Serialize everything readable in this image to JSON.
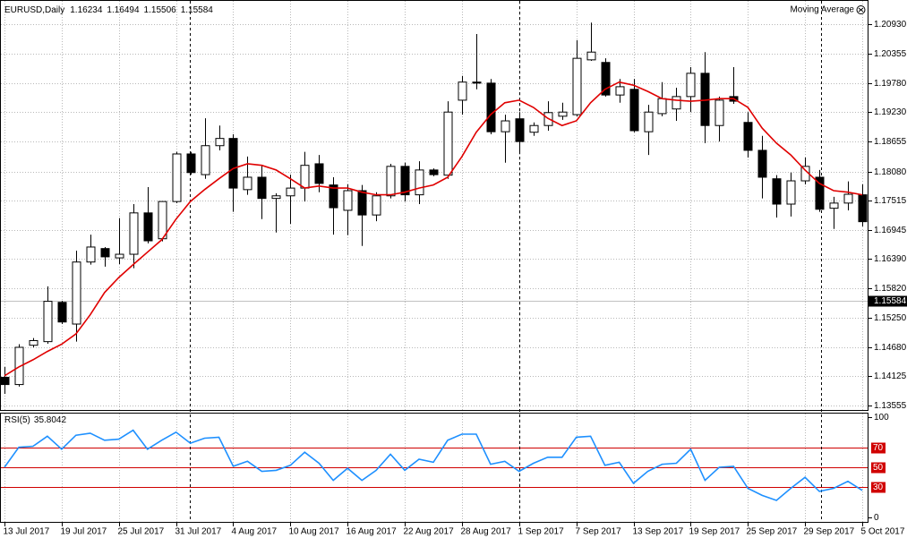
{
  "chart_data": [
    {
      "type": "candlestick",
      "symbol": "EURUSD,Daily",
      "header_values": [
        1.16234,
        1.16494,
        1.15506,
        1.15584
      ],
      "categories": [
        "13 Jul 2017",
        null,
        null,
        null,
        "19 Jul 2017",
        null,
        null,
        null,
        "25 Jul 2017",
        null,
        null,
        null,
        "31 Jul 2017",
        null,
        null,
        null,
        "4 Aug 2017",
        null,
        null,
        null,
        "10 Aug 2017",
        null,
        null,
        null,
        "16 Aug 2017",
        null,
        null,
        null,
        "22 Aug 2017",
        null,
        null,
        null,
        "28 Aug 2017",
        null,
        null,
        null,
        "1 Sep 2017",
        null,
        null,
        null,
        "7 Sep 2017",
        null,
        null,
        null,
        "13 Sep 2017",
        null,
        null,
        null,
        "19 Sep 2017",
        null,
        null,
        null,
        "25 Sep 2017",
        null,
        null,
        null,
        "29 Sep 2017",
        null,
        null,
        null,
        "5 Oct 2017"
      ],
      "open": [
        1.141,
        1.1396,
        1.1472,
        1.1479,
        1.1555,
        1.1513,
        1.1633,
        1.1659,
        1.1641,
        1.1648,
        1.1728,
        1.1678,
        1.175,
        1.1842,
        1.1802,
        1.1858,
        1.1872,
        1.1773,
        1.1797,
        1.1756,
        1.1761,
        1.1776,
        1.1823,
        1.1782,
        1.1733,
        1.1771,
        1.1724,
        1.1761,
        1.1818,
        1.1763,
        1.1811,
        1.1801,
        1.1946,
        1.1981,
        1.1979,
        1.1885,
        1.191,
        1.1884,
        1.1897,
        1.1915,
        1.1918,
        1.2024,
        1.2019,
        1.1956,
        1.1967,
        1.1885,
        1.192,
        1.1929,
        1.1953,
        1.1998,
        1.1897,
        1.1953,
        1.1903,
        1.1849,
        1.1794,
        1.1745,
        1.179,
        1.1797,
        1.1737,
        1.1747,
        1.1763
      ],
      "high": [
        1.143,
        1.1474,
        1.1486,
        1.1586,
        1.1558,
        1.1655,
        1.1686,
        1.1662,
        1.1718,
        1.1745,
        1.1778,
        1.175,
        1.1846,
        1.1846,
        1.1911,
        1.1897,
        1.188,
        1.1837,
        1.182,
        1.1766,
        1.1802,
        1.1846,
        1.184,
        1.1797,
        1.1783,
        1.1782,
        1.1768,
        1.1823,
        1.1825,
        1.1828,
        1.1814,
        1.1944,
        1.1993,
        1.2074,
        1.1987,
        1.1918,
        1.1923,
        1.1903,
        1.1944,
        1.1941,
        1.2062,
        1.2096,
        1.2027,
        1.1987,
        1.1987,
        1.1937,
        1.1981,
        1.197,
        1.201,
        1.2039,
        1.1953,
        1.201,
        1.1923,
        1.1877,
        1.1801,
        1.1806,
        1.1835,
        1.1811,
        1.1759,
        1.1789,
        1.1783
      ],
      "low": [
        1.1378,
        1.1392,
        1.1468,
        1.1475,
        1.1513,
        1.1479,
        1.1628,
        1.1624,
        1.1629,
        1.1621,
        1.1669,
        1.1673,
        1.1747,
        1.1802,
        1.1794,
        1.1849,
        1.173,
        1.1763,
        1.1716,
        1.169,
        1.1707,
        1.175,
        1.1768,
        1.1686,
        1.1685,
        1.1664,
        1.1712,
        1.1756,
        1.175,
        1.1745,
        1.1799,
        1.1794,
        1.1918,
        1.1967,
        1.188,
        1.1825,
        1.1846,
        1.1877,
        1.1887,
        1.1908,
        1.1915,
        1.2022,
        1.1953,
        1.1941,
        1.1884,
        1.184,
        1.1915,
        1.1906,
        1.1923,
        1.1863,
        1.1866,
        1.1939,
        1.1835,
        1.1756,
        1.1719,
        1.1721,
        1.1783,
        1.173,
        1.1697,
        1.1733,
        1.1702
      ],
      "close": [
        1.1396,
        1.1468,
        1.1481,
        1.1557,
        1.1517,
        1.1633,
        1.1662,
        1.1643,
        1.1648,
        1.1728,
        1.1674,
        1.175,
        1.1842,
        1.1806,
        1.1858,
        1.1872,
        1.1776,
        1.1797,
        1.1756,
        1.1761,
        1.1776,
        1.182,
        1.1785,
        1.1738,
        1.1771,
        1.1724,
        1.1761,
        1.1818,
        1.1763,
        1.1811,
        1.1802,
        1.1923,
        1.1981,
        1.1979,
        1.1885,
        1.1906,
        1.1866,
        1.1897,
        1.1922,
        1.1923,
        1.2027,
        1.2039,
        1.1956,
        1.1972,
        1.1887,
        1.1923,
        1.1949,
        1.1953,
        1.1998,
        1.1897,
        1.1946,
        1.1944,
        1.1849,
        1.1797,
        1.1745,
        1.179,
        1.1818,
        1.1735,
        1.1747,
        1.1764,
        1.1711
      ],
      "up_color": "#ffffff",
      "down_color": "#000000",
      "series": [
        {
          "name": "Moving Average",
          "color": "#e00000",
          "values": [
            1.1413,
            1.143,
            1.1444,
            1.146,
            1.1474,
            1.1494,
            1.1531,
            1.1574,
            1.1603,
            1.1628,
            1.1652,
            1.1676,
            1.1716,
            1.175,
            1.1773,
            1.1794,
            1.1814,
            1.1823,
            1.182,
            1.1811,
            1.1794,
            1.1776,
            1.178,
            1.1776,
            1.1776,
            1.1768,
            1.1763,
            1.1763,
            1.1768,
            1.1776,
            1.1782,
            1.1797,
            1.1837,
            1.1884,
            1.1918,
            1.1941,
            1.1946,
            1.1932,
            1.1911,
            1.1897,
            1.1906,
            1.1941,
            1.1967,
            1.1981,
            1.1975,
            1.1963,
            1.1949,
            1.1946,
            1.1944,
            1.1946,
            1.1949,
            1.1949,
            1.1932,
            1.1892,
            1.1863,
            1.184,
            1.1811,
            1.1785,
            1.1771,
            1.1768,
            1.1763
          ]
        }
      ],
      "ylim": [
        1.13468,
        1.21363
      ],
      "yticks": [
        {
          "value": 1.2093,
          "label": "1.20930"
        },
        1.20355,
        {
          "value": 1.1978,
          "label": "1.19780"
        },
        {
          "value": 1.1923,
          "label": "1.19230"
        },
        1.18655,
        {
          "value": 1.1808,
          "label": "1.18080"
        },
        1.17515,
        1.16945,
        {
          "value": 1.1639,
          "label": "1.16390"
        },
        {
          "value": 1.1582,
          "label": "1.15820"
        },
        {
          "value": 1.1525,
          "label": "1.15250"
        },
        {
          "value": 1.1468,
          "label": "1.14680"
        },
        1.14125,
        1.13555
      ],
      "grid": true
    },
    {
      "type": "line",
      "title": "RSI(5)",
      "current_value": 35.8042,
      "color": "#1e90ff",
      "values": [
        50,
        70,
        71,
        81,
        68,
        82,
        84,
        77,
        78,
        87,
        68,
        77,
        85,
        74,
        79,
        80,
        51,
        56,
        46,
        47,
        52,
        65,
        54,
        37,
        49,
        37,
        47,
        63,
        47,
        58,
        55,
        77,
        83,
        83,
        53,
        56,
        46,
        54,
        60,
        60,
        80,
        81,
        52,
        55,
        34,
        46,
        53,
        54,
        68,
        37,
        50,
        51,
        29,
        22,
        17,
        29,
        40,
        26,
        29,
        36,
        27
      ],
      "ylim": [
        0,
        100
      ],
      "yticks": [
        0,
        100
      ],
      "levels": [
        70,
        50,
        30
      ],
      "level_color": "#d00000"
    }
  ]
}
